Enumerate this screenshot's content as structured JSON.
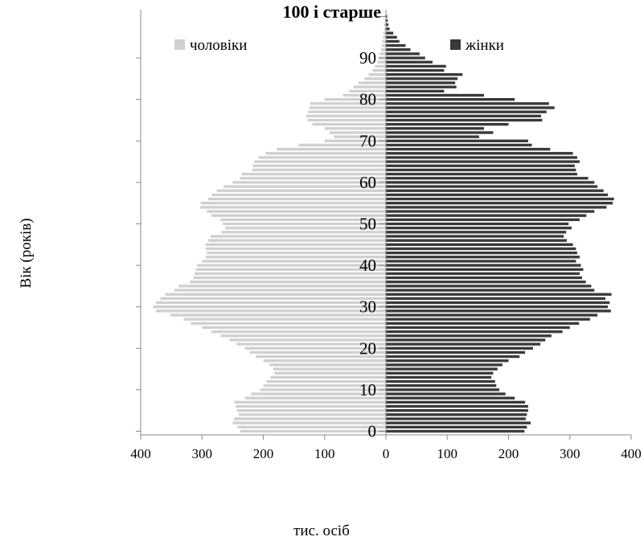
{
  "chart_data": {
    "type": "bar",
    "orientation": "horizontal",
    "subtype": "population pyramid",
    "ylabel": "Вік (років)",
    "xlabel": "тис. осіб",
    "top_age_label": "100 і старше",
    "x_ticks": [
      "400",
      "300",
      "200",
      "100",
      "0",
      "100",
      "200",
      "300",
      "400"
    ],
    "y_ticks": [
      "0",
      "10",
      "20",
      "30",
      "40",
      "50",
      "60",
      "70",
      "80",
      "90"
    ],
    "xlim": [
      -400,
      400
    ],
    "ages": [
      0,
      1,
      2,
      3,
      4,
      5,
      6,
      7,
      8,
      9,
      10,
      11,
      12,
      13,
      14,
      15,
      16,
      17,
      18,
      19,
      20,
      21,
      22,
      23,
      24,
      25,
      26,
      27,
      28,
      29,
      30,
      31,
      32,
      33,
      34,
      35,
      36,
      37,
      38,
      39,
      40,
      41,
      42,
      43,
      44,
      45,
      46,
      47,
      48,
      49,
      50,
      51,
      52,
      53,
      54,
      55,
      56,
      57,
      58,
      59,
      60,
      61,
      62,
      63,
      64,
      65,
      66,
      67,
      68,
      69,
      70,
      71,
      72,
      73,
      74,
      75,
      76,
      77,
      78,
      79,
      80,
      81,
      82,
      83,
      84,
      85,
      86,
      87,
      88,
      89,
      90,
      91,
      92,
      93,
      94,
      95,
      96,
      97,
      98,
      99,
      100
    ],
    "series": [
      {
        "name": "чоловіки",
        "color": "#d0d0d0",
        "values": [
          238,
          242,
          250,
          248,
          240,
          243,
          245,
          247,
          230,
          220,
          205,
          200,
          195,
          188,
          182,
          184,
          190,
          200,
          212,
          222,
          230,
          244,
          255,
          270,
          285,
          300,
          318,
          330,
          352,
          375,
          380,
          375,
          368,
          360,
          345,
          338,
          320,
          314,
          312,
          310,
          308,
          300,
          294,
          292,
          294,
          294,
          290,
          286,
          268,
          262,
          266,
          270,
          285,
          292,
          303,
          302,
          290,
          284,
          276,
          265,
          250,
          238,
          235,
          218,
          217,
          215,
          208,
          196,
          178,
          142,
          100,
          85,
          92,
          100,
          120,
          128,
          130,
          127,
          125,
          124,
          100,
          70,
          60,
          53,
          45,
          35,
          28,
          22,
          18,
          14,
          12,
          10,
          8,
          7,
          6,
          5,
          4,
          3,
          3,
          2,
          2
        ]
      },
      {
        "name": "жінки",
        "color": "#3a3a3a",
        "values": [
          226,
          230,
          236,
          228,
          230,
          232,
          232,
          227,
          210,
          195,
          185,
          180,
          178,
          172,
          175,
          182,
          190,
          200,
          218,
          227,
          240,
          252,
          260,
          270,
          288,
          300,
          315,
          333,
          345,
          367,
          362,
          365,
          358,
          368,
          340,
          335,
          326,
          320,
          316,
          322,
          318,
          310,
          316,
          312,
          310,
          305,
          295,
          290,
          294,
          303,
          298,
          316,
          327,
          340,
          360,
          370,
          372,
          362,
          355,
          345,
          340,
          330,
          312,
          310,
          308,
          316,
          312,
          305,
          268,
          238,
          232,
          152,
          175,
          160,
          200,
          255,
          253,
          262,
          275,
          266,
          210,
          160,
          95,
          115,
          113,
          117,
          125,
          95,
          98,
          76,
          64,
          55,
          40,
          32,
          22,
          18,
          12,
          6,
          4,
          3,
          2
        ]
      }
    ]
  }
}
